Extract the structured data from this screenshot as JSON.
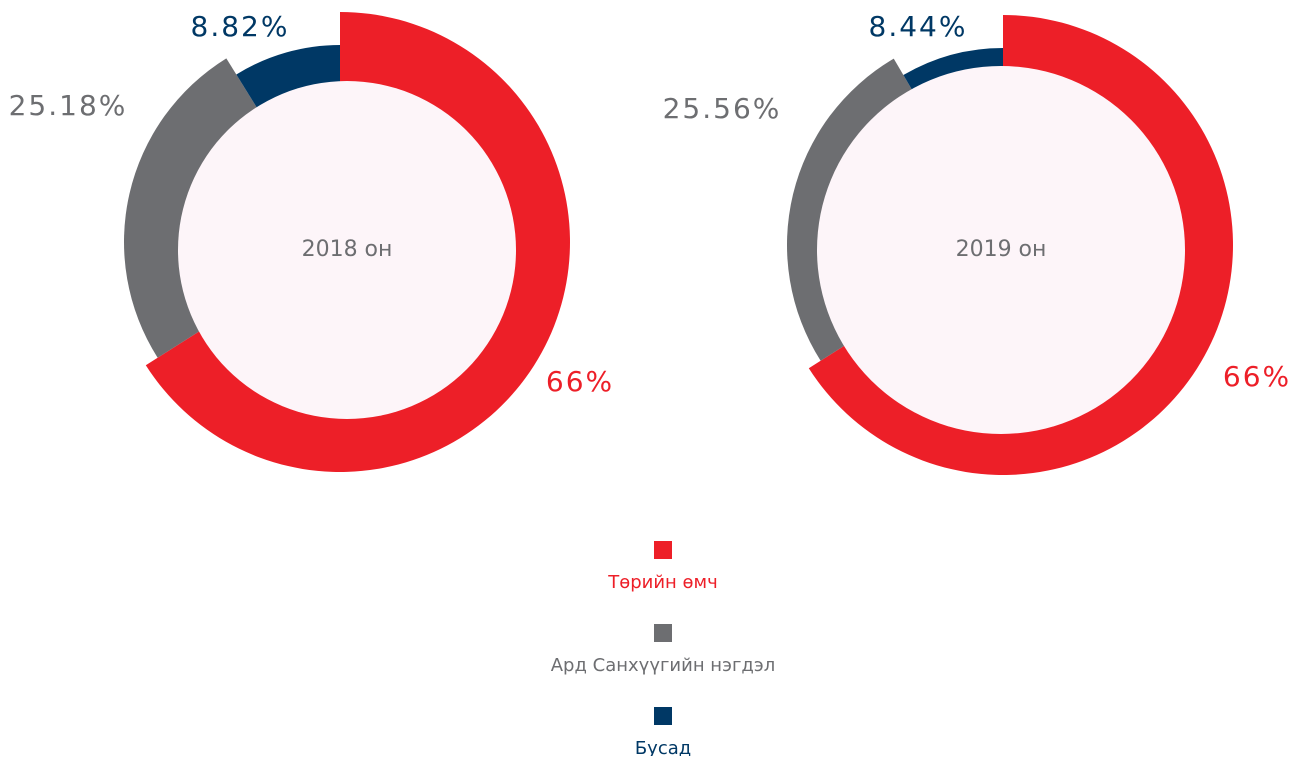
{
  "chart_data": [
    {
      "type": "pie",
      "title": "2018 он",
      "values": [
        66,
        25.18,
        8.82
      ],
      "value_labels": [
        "66%",
        "25.18%",
        "8.82%"
      ]
    },
    {
      "type": "pie",
      "title": "2019 он",
      "values": [
        66,
        25.56,
        8.44
      ],
      "value_labels": [
        "66%",
        "25.56%",
        "8.44%"
      ]
    }
  ],
  "legend": {
    "categories": [
      "Төрийн өмч",
      "Ард Санхүүгийн нэгдэл",
      "Бусад"
    ],
    "colors": [
      "#ed1f28",
      "#6d6e71",
      "#003865"
    ]
  }
}
